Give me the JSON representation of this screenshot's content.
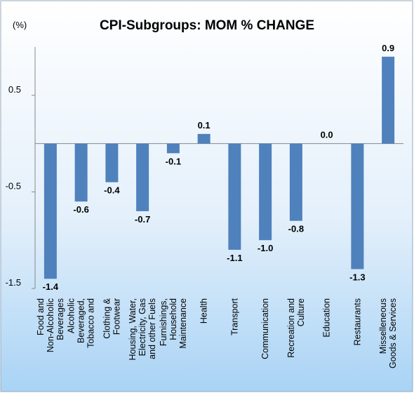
{
  "chart_data": {
    "type": "bar",
    "title": "CPI-Subgroups: MOM % CHANGE",
    "y_label": "(%)",
    "categories": [
      "Food and Non-Alcoholic Beverages",
      "Alcoholic Beveraged, Tobacco and",
      "Clothing & Footwear",
      "Housing, Water, Electricity, Gas and other Fuels",
      "Furnishings, Household Maintenance",
      "Health",
      "Transport",
      "Communication",
      "Recreation and Culture",
      "Education",
      "Restaurants",
      "Misselleneous Goods & Services"
    ],
    "values": [
      -1.4,
      -0.6,
      -0.4,
      -0.7,
      -0.1,
      0.1,
      -1.1,
      -1.0,
      -0.8,
      0.0,
      -1.3,
      0.9
    ],
    "value_labels": [
      "-1.4",
      "-0.6",
      "-0.4",
      "-0.7",
      "-0.1",
      "0.1",
      "-1.1",
      "-1.0",
      "-0.8",
      "0.0",
      "-1.3",
      "0.9"
    ],
    "color": "#4f81bd",
    "ylim": [
      -1.5,
      1.0
    ],
    "yticks": [
      -1.5,
      -0.5,
      0.5
    ],
    "grid": false
  }
}
